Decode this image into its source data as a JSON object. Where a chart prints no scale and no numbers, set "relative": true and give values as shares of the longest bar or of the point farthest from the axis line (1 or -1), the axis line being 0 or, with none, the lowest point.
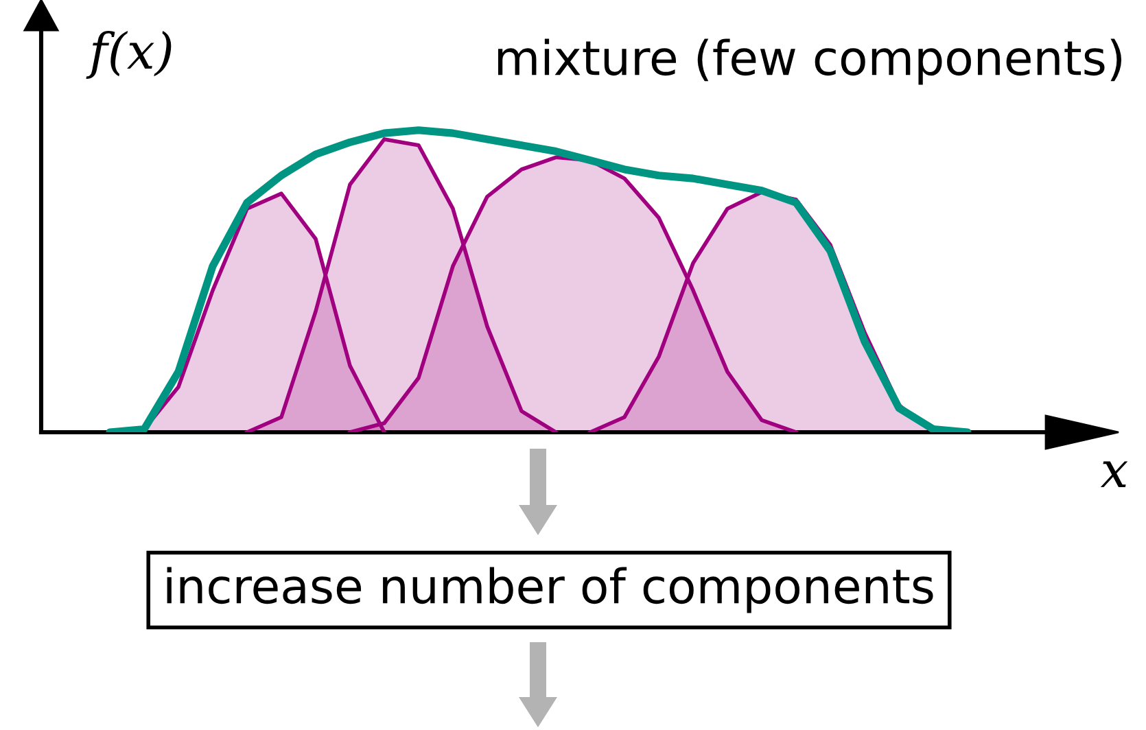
{
  "chart_data": {
    "type": "area",
    "relative": true,
    "title": "mixture (few components)",
    "xlabel": "x",
    "ylabel": "f(x)",
    "categories": [
      null,
      null,
      null,
      null,
      null,
      null,
      null,
      null,
      null,
      null,
      null,
      null,
      null,
      null,
      null,
      null,
      null,
      null,
      null,
      null,
      null,
      null,
      null,
      null,
      null,
      null
    ],
    "series": [
      {
        "type": "area",
        "color": "#a0007f",
        "values": [
          null,
          0.01,
          0.15,
          0.47,
          0.74,
          0.79,
          0.64,
          0.22,
          0.0,
          null,
          null,
          null,
          null,
          null,
          null,
          null,
          null,
          null,
          null,
          null,
          null,
          null,
          null,
          null,
          null,
          null
        ]
      },
      {
        "type": "area",
        "color": "#a0007f",
        "values": [
          null,
          null,
          null,
          null,
          0.0,
          0.05,
          0.4,
          0.82,
          0.97,
          0.95,
          0.74,
          0.35,
          0.07,
          0.0,
          null,
          null,
          null,
          null,
          null,
          null,
          null,
          null,
          null,
          null,
          null,
          null
        ]
      },
      {
        "type": "area",
        "color": "#a0007f",
        "values": [
          null,
          null,
          null,
          null,
          null,
          null,
          null,
          0.0,
          0.03,
          0.18,
          0.55,
          0.78,
          0.87,
          0.91,
          0.9,
          0.84,
          0.71,
          0.47,
          0.2,
          0.04,
          0.0,
          null,
          null,
          null,
          null,
          null
        ]
      },
      {
        "type": "area",
        "color": "#a0007f",
        "values": [
          null,
          null,
          null,
          null,
          null,
          null,
          null,
          null,
          null,
          null,
          null,
          null,
          null,
          null,
          0.0,
          0.05,
          0.25,
          0.56,
          0.74,
          0.795,
          0.77,
          0.62,
          0.33,
          0.09,
          0.0,
          null
        ]
      },
      {
        "type": "line",
        "color": "#009482",
        "values": [
          0,
          0.01,
          0.2,
          0.55,
          0.76,
          0.85,
          0.92,
          0.96,
          0.99,
          1.0,
          0.99,
          0.97,
          0.95,
          0.93,
          0.9,
          0.87,
          0.85,
          0.84,
          0.82,
          0.8,
          0.76,
          0.6,
          0.3,
          0.08,
          0.01,
          0
        ]
      }
    ],
    "annotations": [
      "increase number of components"
    ]
  }
}
